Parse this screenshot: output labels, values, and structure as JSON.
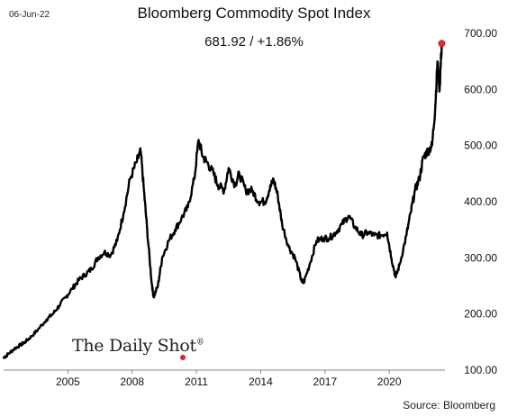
{
  "header": {
    "date": "06-Jun-22",
    "title": "Bloomberg Commodity Spot Index",
    "value": "681.92",
    "separator": " / ",
    "change": "+1.86%"
  },
  "footer": {
    "source": "Source: Bloomberg",
    "logo_text": "The Daily Shot",
    "logo_mark": "®"
  },
  "chart_data": {
    "type": "line",
    "title": "Bloomberg Commodity Spot Index",
    "xlabel": "",
    "ylabel": "",
    "xlim": [
      2002.0,
      2022.6
    ],
    "ylim": [
      100,
      700
    ],
    "x_ticks": [
      2005,
      2008,
      2011,
      2014,
      2017,
      2020
    ],
    "x_tick_labels": [
      "2005",
      "2008",
      "2011",
      "2014",
      "2017",
      "2020"
    ],
    "y_ticks": [
      100,
      200,
      300,
      400,
      500,
      600,
      700
    ],
    "y_tick_labels": [
      "100.00",
      "200.00",
      "300.00",
      "400.00",
      "500.00",
      "600.00",
      "700.00"
    ],
    "y_axis_position": "right",
    "grid": false,
    "line_color": "#000000",
    "end_marker_color": "#e03030",
    "series": [
      {
        "x": [
          2002.0,
          2002.2,
          2002.5,
          2002.8,
          2003.0,
          2003.3,
          2003.6,
          2004.0,
          2004.3,
          2004.6,
          2004.9,
          2005.2,
          2005.5,
          2005.8,
          2006.1,
          2006.4,
          2006.7,
          2007.0,
          2007.3,
          2007.6,
          2007.9,
          2008.2,
          2008.4,
          2008.55,
          2008.7,
          2008.9,
          2009.0,
          2009.2,
          2009.4,
          2009.7,
          2010.0,
          2010.3,
          2010.6,
          2010.9,
          2011.1,
          2011.3,
          2011.5,
          2011.8,
          2012.0,
          2012.3,
          2012.5,
          2012.8,
          2013.0,
          2013.3,
          2013.6,
          2013.9,
          2014.2,
          2014.4,
          2014.6,
          2014.8,
          2015.0,
          2015.3,
          2015.6,
          2015.9,
          2016.0,
          2016.3,
          2016.6,
          2016.9,
          2017.2,
          2017.5,
          2017.8,
          2018.1,
          2018.4,
          2018.7,
          2019.0,
          2019.3,
          2019.6,
          2019.9,
          2020.1,
          2020.3,
          2020.5,
          2020.8,
          2021.0,
          2021.2,
          2021.4,
          2021.6,
          2021.8,
          2022.0,
          2022.15,
          2022.25,
          2022.35,
          2022.45
        ],
        "y": [
          122,
          128,
          138,
          145,
          150,
          160,
          172,
          190,
          200,
          215,
          230,
          245,
          260,
          270,
          280,
          300,
          310,
          305,
          330,
          380,
          440,
          470,
          490,
          420,
          350,
          260,
          230,
          250,
          300,
          330,
          350,
          370,
          390,
          440,
          510,
          480,
          470,
          450,
          430,
          420,
          460,
          430,
          450,
          420,
          420,
          400,
          400,
          420,
          440,
          410,
          360,
          320,
          300,
          260,
          255,
          290,
          330,
          335,
          335,
          345,
          360,
          375,
          355,
          340,
          345,
          340,
          340,
          345,
          300,
          265,
          290,
          340,
          380,
          420,
          440,
          480,
          490,
          500,
          570,
          650,
          600,
          681.92
        ]
      }
    ]
  }
}
